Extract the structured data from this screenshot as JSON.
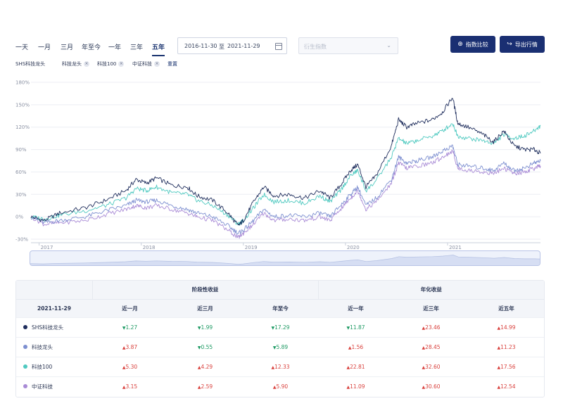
{
  "periods": [
    "一天",
    "一月",
    "三月",
    "年至今",
    "一年",
    "三年",
    "五年"
  ],
  "active_period": "五年",
  "date_range": {
    "start": "2016-11-30",
    "sep": "至",
    "end": "2021-11-29"
  },
  "index_select": {
    "placeholder": "衍生指数"
  },
  "buttons": {
    "compare": "指数比较",
    "export": "导出行情"
  },
  "tags": {
    "primary": "SHS科技龙头",
    "items": [
      "科技龙头",
      "科技100",
      "中证科技"
    ],
    "reset": "重置"
  },
  "chart_data": {
    "type": "line",
    "ylim": [
      -30,
      180
    ],
    "yticks": [
      "180%",
      "150%",
      "120%",
      "90%",
      "60%",
      "30%",
      "0%",
      "-30%"
    ],
    "xticks": [
      "2017",
      "2018",
      "2019",
      "2020",
      "2021"
    ],
    "x_range": [
      "2016-11-30",
      "2021-11-29"
    ],
    "grid": true,
    "series": [
      {
        "name": "SHS科技龙头",
        "color": "#1e2d5c",
        "values": [
          [
            2016.92,
            0
          ],
          [
            2017.05,
            -5
          ],
          [
            2017.2,
            5
          ],
          [
            2017.45,
            12
          ],
          [
            2017.65,
            22
          ],
          [
            2017.85,
            35
          ],
          [
            2017.95,
            50
          ],
          [
            2018.05,
            45
          ],
          [
            2018.15,
            52
          ],
          [
            2018.3,
            42
          ],
          [
            2018.45,
            40
          ],
          [
            2018.55,
            28
          ],
          [
            2018.7,
            22
          ],
          [
            2018.85,
            5
          ],
          [
            2018.95,
            -12
          ],
          [
            2019.0,
            -5
          ],
          [
            2019.1,
            20
          ],
          [
            2019.2,
            40
          ],
          [
            2019.3,
            28
          ],
          [
            2019.45,
            30
          ],
          [
            2019.6,
            25
          ],
          [
            2019.75,
            35
          ],
          [
            2019.85,
            25
          ],
          [
            2019.95,
            42
          ],
          [
            2020.05,
            62
          ],
          [
            2020.12,
            70
          ],
          [
            2020.2,
            40
          ],
          [
            2020.3,
            55
          ],
          [
            2020.45,
            95
          ],
          [
            2020.52,
            130
          ],
          [
            2020.6,
            120
          ],
          [
            2020.7,
            125
          ],
          [
            2020.85,
            130
          ],
          [
            2020.95,
            140
          ],
          [
            2021.05,
            160
          ],
          [
            2021.1,
            125
          ],
          [
            2021.2,
            120
          ],
          [
            2021.35,
            110
          ],
          [
            2021.45,
            100
          ],
          [
            2021.55,
            115
          ],
          [
            2021.65,
            95
          ],
          [
            2021.75,
            90
          ],
          [
            2021.85,
            90
          ],
          [
            2021.91,
            85
          ]
        ]
      },
      {
        "name": "科技龙头",
        "color": "#7d8fd0",
        "values": [
          [
            2016.92,
            0
          ],
          [
            2017.05,
            -8
          ],
          [
            2017.2,
            -5
          ],
          [
            2017.45,
            0
          ],
          [
            2017.65,
            8
          ],
          [
            2017.85,
            15
          ],
          [
            2017.95,
            22
          ],
          [
            2018.05,
            20
          ],
          [
            2018.15,
            22
          ],
          [
            2018.3,
            15
          ],
          [
            2018.45,
            10
          ],
          [
            2018.55,
            5
          ],
          [
            2018.7,
            0
          ],
          [
            2018.85,
            -12
          ],
          [
            2018.95,
            -22
          ],
          [
            2019.0,
            -18
          ],
          [
            2019.1,
            -5
          ],
          [
            2019.2,
            10
          ],
          [
            2019.3,
            0
          ],
          [
            2019.45,
            2
          ],
          [
            2019.6,
            0
          ],
          [
            2019.75,
            5
          ],
          [
            2019.85,
            0
          ],
          [
            2019.95,
            15
          ],
          [
            2020.05,
            30
          ],
          [
            2020.12,
            40
          ],
          [
            2020.2,
            15
          ],
          [
            2020.3,
            25
          ],
          [
            2020.45,
            50
          ],
          [
            2020.52,
            80
          ],
          [
            2020.6,
            72
          ],
          [
            2020.7,
            75
          ],
          [
            2020.85,
            80
          ],
          [
            2020.95,
            88
          ],
          [
            2021.05,
            95
          ],
          [
            2021.1,
            70
          ],
          [
            2021.2,
            68
          ],
          [
            2021.35,
            65
          ],
          [
            2021.45,
            62
          ],
          [
            2021.55,
            72
          ],
          [
            2021.65,
            62
          ],
          [
            2021.75,
            65
          ],
          [
            2021.85,
            72
          ],
          [
            2021.91,
            75
          ]
        ]
      },
      {
        "name": "科技100",
        "color": "#4fc9c0",
        "values": [
          [
            2016.92,
            0
          ],
          [
            2017.05,
            -3
          ],
          [
            2017.2,
            2
          ],
          [
            2017.45,
            8
          ],
          [
            2017.65,
            15
          ],
          [
            2017.85,
            25
          ],
          [
            2017.95,
            38
          ],
          [
            2018.05,
            35
          ],
          [
            2018.15,
            40
          ],
          [
            2018.3,
            32
          ],
          [
            2018.45,
            30
          ],
          [
            2018.55,
            22
          ],
          [
            2018.7,
            15
          ],
          [
            2018.85,
            2
          ],
          [
            2018.95,
            -10
          ],
          [
            2019.0,
            -5
          ],
          [
            2019.1,
            12
          ],
          [
            2019.2,
            30
          ],
          [
            2019.3,
            20
          ],
          [
            2019.45,
            22
          ],
          [
            2019.6,
            18
          ],
          [
            2019.75,
            28
          ],
          [
            2019.85,
            20
          ],
          [
            2019.95,
            35
          ],
          [
            2020.05,
            55
          ],
          [
            2020.12,
            62
          ],
          [
            2020.2,
            35
          ],
          [
            2020.3,
            48
          ],
          [
            2020.45,
            80
          ],
          [
            2020.52,
            105
          ],
          [
            2020.6,
            98
          ],
          [
            2020.7,
            102
          ],
          [
            2020.85,
            108
          ],
          [
            2020.95,
            115
          ],
          [
            2021.05,
            125
          ],
          [
            2021.1,
            108
          ],
          [
            2021.2,
            105
          ],
          [
            2021.35,
            102
          ],
          [
            2021.45,
            98
          ],
          [
            2021.55,
            110
          ],
          [
            2021.65,
            105
          ],
          [
            2021.75,
            108
          ],
          [
            2021.85,
            115
          ],
          [
            2021.91,
            122
          ]
        ]
      },
      {
        "name": "中证科技",
        "color": "#a98bd6",
        "values": [
          [
            2016.92,
            0
          ],
          [
            2017.05,
            -10
          ],
          [
            2017.2,
            -8
          ],
          [
            2017.45,
            -5
          ],
          [
            2017.65,
            3
          ],
          [
            2017.85,
            10
          ],
          [
            2017.95,
            15
          ],
          [
            2018.05,
            12
          ],
          [
            2018.15,
            15
          ],
          [
            2018.3,
            10
          ],
          [
            2018.45,
            5
          ],
          [
            2018.55,
            0
          ],
          [
            2018.7,
            -5
          ],
          [
            2018.85,
            -18
          ],
          [
            2018.95,
            -28
          ],
          [
            2019.0,
            -22
          ],
          [
            2019.1,
            -10
          ],
          [
            2019.2,
            5
          ],
          [
            2019.3,
            -5
          ],
          [
            2019.45,
            -3
          ],
          [
            2019.6,
            -5
          ],
          [
            2019.75,
            0
          ],
          [
            2019.85,
            -5
          ],
          [
            2019.95,
            10
          ],
          [
            2020.05,
            25
          ],
          [
            2020.12,
            35
          ],
          [
            2020.2,
            10
          ],
          [
            2020.3,
            20
          ],
          [
            2020.45,
            45
          ],
          [
            2020.52,
            72
          ],
          [
            2020.6,
            65
          ],
          [
            2020.7,
            68
          ],
          [
            2020.85,
            72
          ],
          [
            2020.95,
            80
          ],
          [
            2021.05,
            88
          ],
          [
            2021.1,
            65
          ],
          [
            2021.2,
            62
          ],
          [
            2021.35,
            60
          ],
          [
            2021.45,
            58
          ],
          [
            2021.55,
            65
          ],
          [
            2021.65,
            58
          ],
          [
            2021.75,
            60
          ],
          [
            2021.85,
            65
          ],
          [
            2021.91,
            68
          ]
        ]
      }
    ]
  },
  "table": {
    "group_headers": [
      "阶段性收益",
      "年化收益"
    ],
    "date": "2021-11-29",
    "columns": [
      "近一月",
      "近三月",
      "年至今",
      "近一年",
      "近三年",
      "近五年"
    ],
    "rows": [
      {
        "name": "SHS科技龙头",
        "color": "#1e2d5c",
        "cells": [
          {
            "v": "1.27",
            "d": "down"
          },
          {
            "v": "1.99",
            "d": "down"
          },
          {
            "v": "17.29",
            "d": "down"
          },
          {
            "v": "11.87",
            "d": "down"
          },
          {
            "v": "23.46",
            "d": "up"
          },
          {
            "v": "14.99",
            "d": "up"
          }
        ]
      },
      {
        "name": "科技龙头",
        "color": "#7d8fd0",
        "cells": [
          {
            "v": "3.87",
            "d": "up"
          },
          {
            "v": "0.55",
            "d": "down"
          },
          {
            "v": "5.89",
            "d": "down"
          },
          {
            "v": "1.56",
            "d": "up"
          },
          {
            "v": "28.45",
            "d": "up"
          },
          {
            "v": "11.23",
            "d": "up"
          }
        ]
      },
      {
        "name": "科技100",
        "color": "#4fc9c0",
        "cells": [
          {
            "v": "5.30",
            "d": "up"
          },
          {
            "v": "4.29",
            "d": "up"
          },
          {
            "v": "12.33",
            "d": "up"
          },
          {
            "v": "22.81",
            "d": "up"
          },
          {
            "v": "32.60",
            "d": "up"
          },
          {
            "v": "17.56",
            "d": "up"
          }
        ]
      },
      {
        "name": "中证科技",
        "color": "#a98bd6",
        "cells": [
          {
            "v": "3.15",
            "d": "up"
          },
          {
            "v": "2.59",
            "d": "up"
          },
          {
            "v": "5.90",
            "d": "up"
          },
          {
            "v": "11.09",
            "d": "up"
          },
          {
            "v": "30.60",
            "d": "up"
          },
          {
            "v": "12.54",
            "d": "up"
          }
        ]
      }
    ]
  }
}
